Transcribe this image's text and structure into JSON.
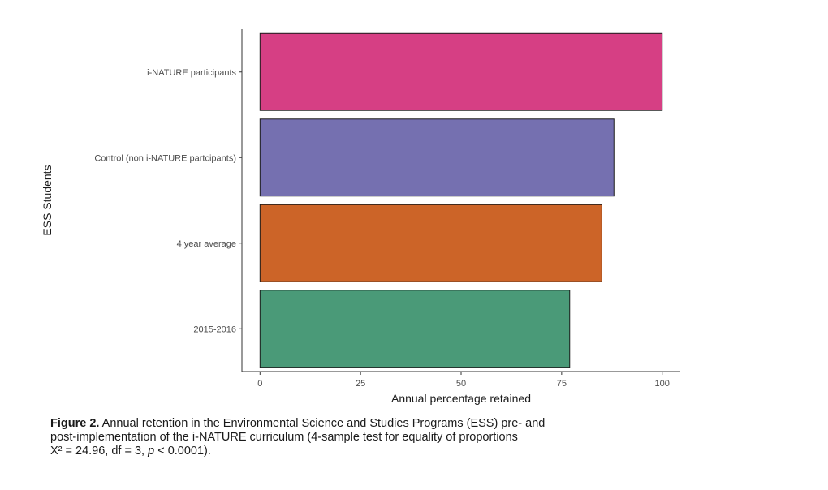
{
  "chart_data": {
    "type": "bar",
    "orientation": "horizontal",
    "categories": [
      "i-NATURE participants",
      "Control (non i-NATURE partcipants)",
      "4 year average",
      "2015-2016"
    ],
    "values": [
      100,
      88,
      85,
      77
    ],
    "colors": [
      "#d63f84",
      "#7570b0",
      "#cc6428",
      "#4a9a78"
    ],
    "xlabel": "Annual percentage retained",
    "ylabel": "ESS Students",
    "xlim": [
      -4.5,
      104.5
    ],
    "x_ticks": [
      0,
      25,
      50,
      75,
      100
    ],
    "grid": false,
    "legend": "none"
  },
  "caption": {
    "label": "Figure 2.",
    "line1": " Annual retention in the Environmental Science and Studies Programs (ESS) pre- and",
    "line2": "post-implementation of the i-NATURE curriculum (4-sample test for equality of proportions",
    "line3_start": "X² = 24.96, df = 3, ",
    "line3_p": "p",
    "line3_end": " < 0.0001)."
  }
}
